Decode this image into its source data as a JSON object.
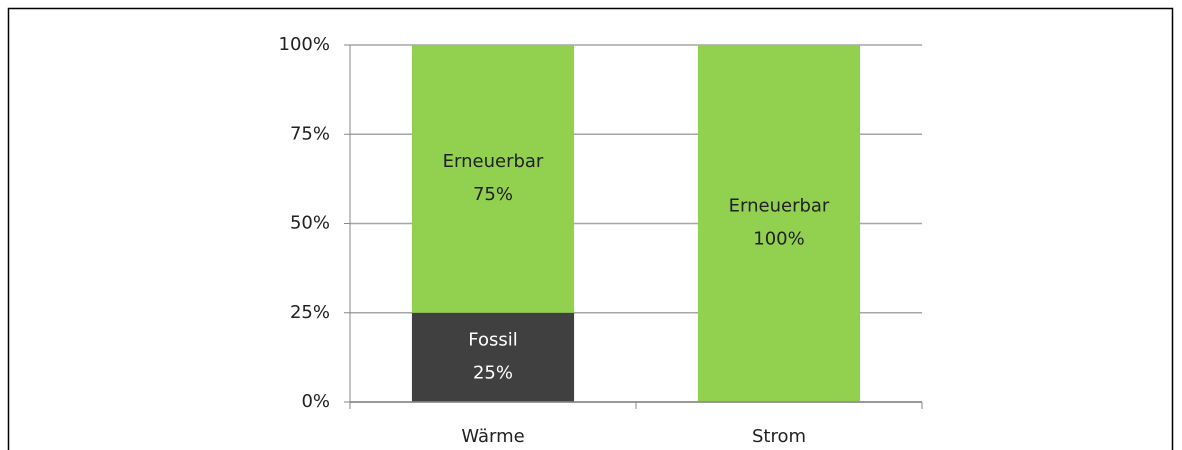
{
  "chart_data": {
    "type": "stacked_bar",
    "categories": [
      "Wärme",
      "Strom"
    ],
    "series": [
      {
        "name": "Fossil",
        "color": "#404040",
        "values": [
          25,
          0
        ],
        "value_labels": [
          "25%",
          null
        ]
      },
      {
        "name": "Erneuerbar",
        "color": "#92d050",
        "values": [
          75,
          100
        ],
        "value_labels": [
          "75%",
          "100%"
        ]
      }
    ],
    "ylim": [
      0,
      100
    ],
    "yticks": [
      {
        "value": 0,
        "label": "0%"
      },
      {
        "value": 25,
        "label": "25%"
      },
      {
        "value": 50,
        "label": "50%"
      },
      {
        "value": 75,
        "label": "75%"
      },
      {
        "value": 100,
        "label": "100%"
      }
    ],
    "grid": true
  }
}
